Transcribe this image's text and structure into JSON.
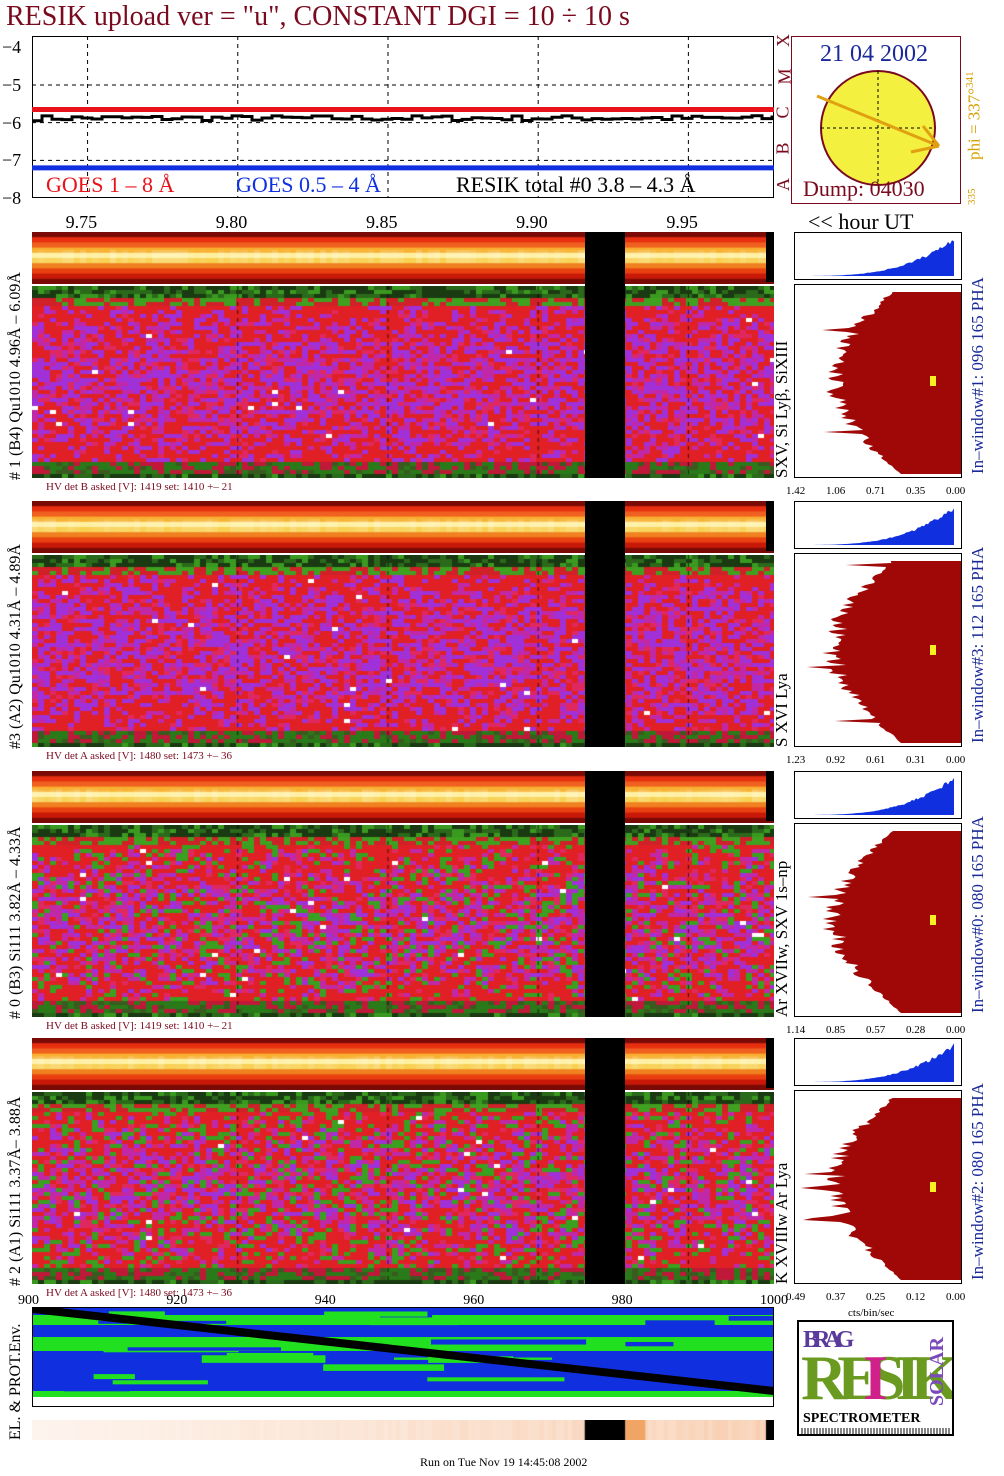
{
  "header": {
    "title": "RESIK upload ver = \"u\", CONSTANT  DGI =  10 ÷  10 s",
    "date": "21 04 2002",
    "dump": "Dump: 04030",
    "phi_label": "phi = 337°",
    "phi_sup": "341",
    "phi_low": "335",
    "flare_classes": [
      "X",
      "M",
      "C",
      "B",
      "A"
    ],
    "hour_label": "<< hour UT",
    "footer": "Run on Tue Nov 19 14:45:08 2002",
    "colors": {
      "title": "#7a0a1e",
      "goes_long": "#e8121a",
      "goes_short": "#1030e0",
      "resik": "#000000",
      "label_blue": "#1a2a9a",
      "phi": "#d8a000",
      "dump": "#7a0a1e"
    }
  },
  "chart_data": [
    {
      "type": "line",
      "name": "goes-light-curves",
      "ylim": [
        -8,
        -3.7
      ],
      "yticks": [
        "−4",
        "−5",
        "−6",
        "−7",
        "−8"
      ],
      "xlim": [
        9.7315,
        9.9785
      ],
      "xticks": [
        "9.75",
        "9.80",
        "9.85",
        "9.90",
        "9.95"
      ],
      "legend": [
        {
          "name": "GOES 1 – 8 Å",
          "color": "#e8121a"
        },
        {
          "name": "GOES 0.5 – 4 Å",
          "color": "#1030e0"
        },
        {
          "name": "RESIK total #0  3.8 – 4.3 Å",
          "color": "#000000"
        }
      ],
      "series": [
        {
          "name": "GOES 1 – 8 Å",
          "value": -5.65
        },
        {
          "name": "GOES 0.5 – 4 Å",
          "value": -7.2
        },
        {
          "name": "RESIK total #0  3.8 – 4.3 Å",
          "value": -5.88
        }
      ]
    },
    {
      "type": "heatmap",
      "name": "detector-spectrograms",
      "gap": {
        "from": 9.9155,
        "to": 9.929
      },
      "panels": [
        {
          "id": "p1",
          "label": "# 1 (B4) Qu1010 4.96Å – 6.09Å",
          "lines": "SXV, Si Lyβ, SiXIII",
          "hv": "HV det B asked [V]:  1419 set:  1410 +–   21",
          "side_label": "In–window#1:  096 165 PHA",
          "pha_ticks": [
            "1.42",
            "1.06",
            "0.71",
            "0.35",
            "0.00"
          ]
        },
        {
          "id": "p3",
          "label": "#3 (A2) Qu1010  4.31Å – 4.89Å",
          "lines": "S XVI Lya",
          "hv": "HV det A asked [V]:  1480 set:  1473 +–   36",
          "side_label": "In–window#3:  112 165 PHA",
          "pha_ticks": [
            "1.23",
            "0.92",
            "0.61",
            "0.31",
            "0.00"
          ]
        },
        {
          "id": "p0",
          "label": "# 0 (B3) Si111  3.82Å – 4.33Å",
          "lines": "Ar XVIIw,  SXV 1s–np",
          "hv": "HV det B asked [V]:  1419 set:  1410 +–   21",
          "side_label": "In–window#0:  080 165 PHA",
          "pha_ticks": [
            "1.14",
            "0.85",
            "0.57",
            "0.28",
            "0.00"
          ]
        },
        {
          "id": "p2",
          "label": "# 2 (A1) Si111  3.37Å– 3.88Å",
          "lines": "K XVIIIw  Ar Lya",
          "hv": "HV det A asked [V]:  1480 set:  1473 +–   36",
          "side_label": "In–window#2:  080 165 PHA",
          "pha_ticks": [
            "0.49",
            "0.37",
            "0.25",
            "0.12",
            "0.00"
          ]
        }
      ]
    },
    {
      "type": "area",
      "name": "environment-monitor",
      "label": "EL. & PROT.Env.",
      "xlim": [
        900,
        1000
      ],
      "xticks": [
        "900",
        "920",
        "940",
        "960",
        "980",
        "1000"
      ],
      "pha_xlabel": "cts/bin/sec"
    }
  ],
  "logo": {
    "top": "BRAG",
    "main": "RESIK",
    "side": "SOLAR",
    "bottom": "SPECTROMETER"
  }
}
